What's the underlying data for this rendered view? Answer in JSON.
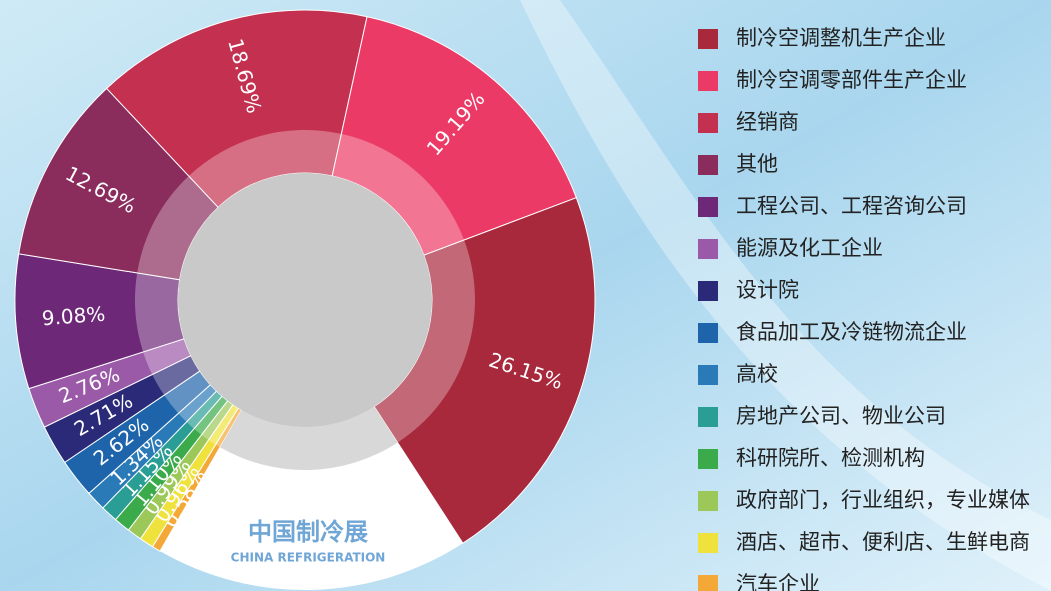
{
  "chart_data": {
    "type": "pie",
    "categories": [
      "制冷空调整机生产企业",
      "制冷空调零部件生产企业",
      "经销商",
      "其他",
      "工程公司、工程咨询公司",
      "能源及化工企业",
      "设计院",
      "食品加工及冷链物流企业",
      "高校",
      "房地产公司、物业公司",
      "科研院所、检测机构",
      "政府部门，行业组织，专业媒体",
      "酒店、超市、便利店、生鲜电商",
      "汽车企业"
    ],
    "values": [
      26.15,
      19.19,
      18.69,
      12.69,
      9.08,
      2.76,
      2.71,
      2.62,
      1.34,
      1.15,
      1.1,
      0.99,
      0.96,
      0.58
    ],
    "value_labels": [
      "26.15%",
      "19.19%",
      "18.69%",
      "12.69%",
      "9.08%",
      "2.76%",
      "2.71%",
      "2.62%",
      "1.34%",
      "1.15%",
      "1.10%",
      "0.99%",
      "0.96%",
      "0.58%"
    ],
    "colors": [
      "#a8283c",
      "#ec3a66",
      "#c4304f",
      "#8a2d5c",
      "#6e2878",
      "#9b5aa8",
      "#2a2a78",
      "#1e64aa",
      "#2a7ab8",
      "#2a9e94",
      "#3aaa4a",
      "#9cc85a",
      "#f0e23c",
      "#f4a838"
    ],
    "annotations": [
      "中国制冷展",
      "CHINA REFRIGERATION"
    ]
  }
}
